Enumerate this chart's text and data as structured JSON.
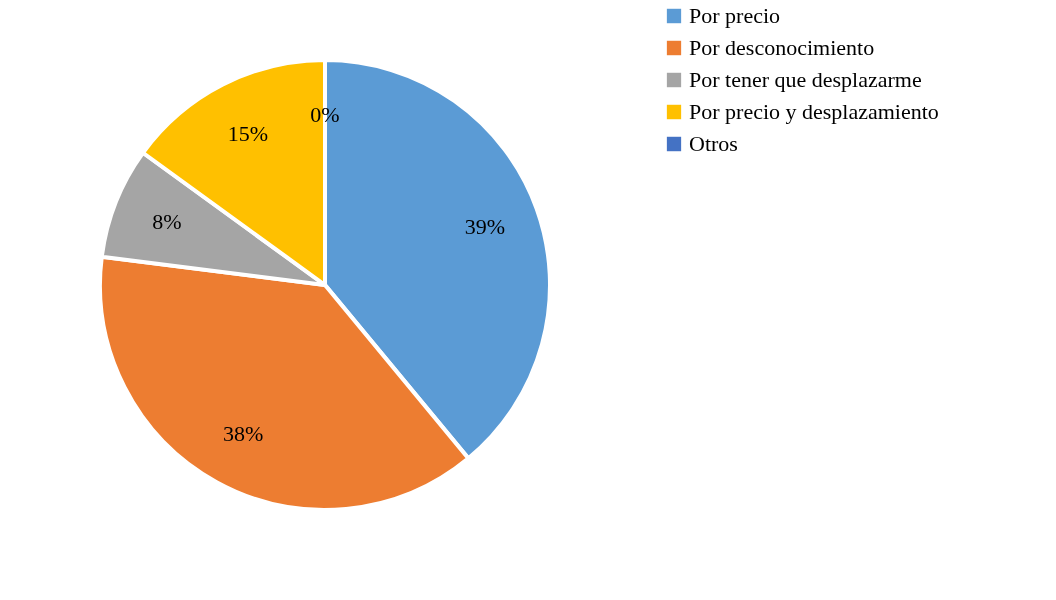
{
  "chart_data": {
    "type": "pie",
    "categories": [
      "Por precio",
      "Por desconocimiento",
      "Por tener que desplazarme",
      "Por precio y desplazamiento",
      "Otros"
    ],
    "values": [
      39,
      38,
      8,
      15,
      0
    ],
    "colors": [
      "#5b9bd5",
      "#ed7d31",
      "#a5a5a5",
      "#ffc000",
      "#4472c4"
    ],
    "value_labels": [
      "39%",
      "38%",
      "8%",
      "15%",
      "0%"
    ],
    "legend": "right"
  }
}
